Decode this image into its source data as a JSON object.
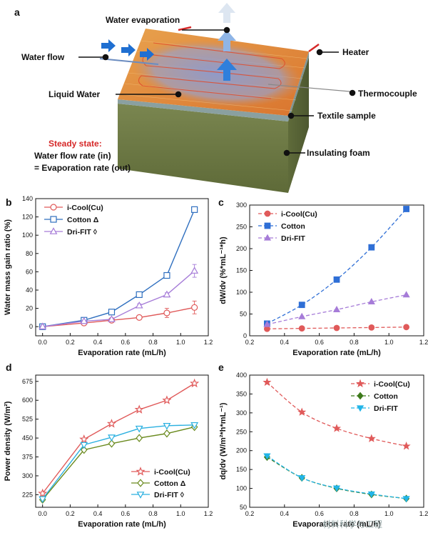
{
  "panel_labels": {
    "a": "a",
    "b": "b",
    "c": "c",
    "d": "d",
    "e": "e"
  },
  "schematic": {
    "water_evaporation": "Water evaporation",
    "water_flow": "Water flow",
    "liquid_water": "Liquid Water",
    "heater": "Heater",
    "thermocouple": "Thermocouple",
    "textile_sample": "Textile sample",
    "insulating_foam": "Insulating foam",
    "steady_state": "Steady state:",
    "line1": "Water flow rate (in)",
    "line2": "= Evaporation rate (out)",
    "colors": {
      "top": "#e0863a",
      "side": "#6f7a45",
      "accent": "#d62828",
      "arrow_blue": "#1f6fd1"
    }
  },
  "watermark": "材料科学与工程",
  "chart_data": [
    {
      "id": "b",
      "type": "line",
      "xlabel": "Evaporation rate (mL/h)",
      "ylabel": "Water mass gain ratio (%)",
      "xlim": [
        -0.05,
        1.2
      ],
      "ylim": [
        -10,
        140
      ],
      "xticks": [
        "0.0",
        "0.2",
        "0.4",
        "0.6",
        "0.8",
        "1.0",
        "1.2"
      ],
      "yticks": [
        "0",
        "20",
        "40",
        "60",
        "80",
        "100",
        "120",
        "140"
      ],
      "x": [
        0,
        0.3,
        0.5,
        0.7,
        0.9,
        1.1
      ],
      "legend_position": "top-left",
      "series": [
        {
          "name": "i-Cool(Cu)",
          "color": "#e05a5a",
          "marker": "circle-open",
          "values": [
            0,
            4,
            7,
            10,
            15,
            21
          ],
          "err": [
            2,
            2,
            2,
            2,
            5,
            7
          ]
        },
        {
          "name": "Cotton Δ",
          "color": "#2f6fbf",
          "marker": "square-open",
          "values": [
            0,
            7,
            16,
            35,
            56,
            128
          ],
          "err": [
            1,
            1,
            1,
            2,
            2,
            2
          ]
        },
        {
          "name": "Dri-FIT ◊",
          "color": "#a67cd8",
          "marker": "triangle-open",
          "values": [
            0,
            6,
            8,
            23,
            35,
            61
          ],
          "err": [
            1,
            1,
            1,
            2,
            2,
            7
          ]
        }
      ]
    },
    {
      "id": "c",
      "type": "scatter",
      "xlabel": "Evaporation rate (mL/h)",
      "ylabel": "dW/dv (%*mL⁻¹*h)",
      "xlim": [
        0.2,
        1.2
      ],
      "ylim": [
        0,
        300
      ],
      "xticks": [
        "0.2",
        "0.4",
        "0.6",
        "0.8",
        "1.0",
        "1.2"
      ],
      "yticks": [
        "0",
        "50",
        "100",
        "150",
        "200",
        "250",
        "300"
      ],
      "x": [
        0.3,
        0.5,
        0.7,
        0.9,
        1.1
      ],
      "legend_position": "top-left",
      "series": [
        {
          "name": "i-Cool(Cu)",
          "color": "#e05a5a",
          "marker": "circle",
          "values": [
            16,
            17,
            18,
            19,
            20
          ]
        },
        {
          "name": "Cotton",
          "color": "#2f6fd6",
          "marker": "square",
          "values": [
            28,
            71,
            129,
            203,
            291
          ]
        },
        {
          "name": "Dri-FIT",
          "color": "#a67cd8",
          "marker": "triangle",
          "values": [
            26,
            44,
            60,
            78,
            94
          ]
        }
      ]
    },
    {
      "id": "d",
      "type": "line",
      "xlabel": "Evaporation rate (mL/h)",
      "ylabel": "Power density (W/m²)",
      "xlim": [
        -0.05,
        1.2
      ],
      "ylim": [
        175,
        700
      ],
      "xticks": [
        "0.0",
        "0.2",
        "0.4",
        "0.6",
        "0.8",
        "1.0",
        "1.2"
      ],
      "yticks": [
        "225",
        "300",
        "375",
        "450",
        "525",
        "600",
        "675"
      ],
      "x": [
        0,
        0.3,
        0.5,
        0.7,
        0.9,
        1.1
      ],
      "legend_position": "bottom-right",
      "series": [
        {
          "name": "i-Cool(Cu)",
          "color": "#e05a5a",
          "marker": "star-open",
          "values": [
            230,
            445,
            507,
            563,
            600,
            667
          ]
        },
        {
          "name": "Cotton Δ",
          "color": "#6a8a1e",
          "marker": "diamond-open",
          "values": [
            205,
            403,
            428,
            450,
            468,
            494
          ]
        },
        {
          "name": "Dri-FIT ◊",
          "color": "#2bb0e0",
          "marker": "triangle-down-open",
          "values": [
            208,
            423,
            453,
            488,
            499,
            502
          ]
        }
      ]
    },
    {
      "id": "e",
      "type": "scatter",
      "xlabel": "Evaporation rate (mL/h)",
      "ylabel": "dq/dv (W/m²*h*mL⁻¹)",
      "xlim": [
        0.2,
        1.2
      ],
      "ylim": [
        50,
        400
      ],
      "xticks": [
        "0.2",
        "0.4",
        "0.6",
        "0.8",
        "1.0",
        "1.2"
      ],
      "yticks": [
        "50",
        "100",
        "150",
        "200",
        "250",
        "300",
        "350",
        "400"
      ],
      "x": [
        0.3,
        0.5,
        0.7,
        0.9,
        1.1
      ],
      "legend_position": "top-right",
      "series": [
        {
          "name": "i-Cool(Cu)",
          "color": "#e05a5a",
          "marker": "star",
          "values": [
            381,
            302,
            259,
            232,
            212
          ]
        },
        {
          "name": "Cotton",
          "color": "#3d7a1a",
          "marker": "diamond",
          "values": [
            183,
            128,
            100,
            84,
            73
          ]
        },
        {
          "name": "Dri-FIT",
          "color": "#22b5e8",
          "marker": "triangle-down",
          "values": [
            186,
            128,
            101,
            85,
            73
          ]
        }
      ]
    }
  ]
}
